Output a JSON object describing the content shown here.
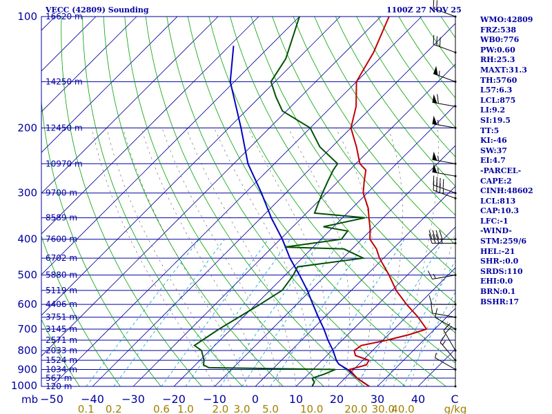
{
  "header": {
    "station_title": "VECC (42809) Sounding",
    "valid_time": "1100Z 27 NOV 25"
  },
  "indices": [
    "WMO:42809",
    "FRZ:538",
    "WB0:776",
    "PW:0.60",
    "RH:25.3",
    "MAXT:31.3",
    "TH:5760",
    "L57:6.3",
    "LCL:875",
    "LI:9.2",
    "SI:19.5",
    "TT:5",
    "KI:-46",
    "SW:37",
    "EI:4.7",
    "-PARCEL-",
    "CAPE:2",
    "CINH:48602",
    "LCL:813",
    "CAP:10.3",
    "LFC:-1",
    "-WIND-",
    "STM:259/6",
    "HEL:-21",
    "SHR-:0.0",
    "SRDS:110",
    "EHI:0.0",
    "BRN:0.1",
    "BSHR:17"
  ],
  "colors": {
    "frame": "#0000a0",
    "isobar": "#0000a0",
    "isotherm": "#0000a0",
    "dry_adiabat": "#00a000",
    "mixing_ratio": "#00a0d0",
    "moist_adiabat": "#606060",
    "temperature": "#c00000",
    "dewpoint": "#005000",
    "parcel": "#0000c0",
    "xaxis_text": "#0000a0",
    "mixing_text": "#a08000",
    "wind": "#000000"
  },
  "chart_data": {
    "type": "skew-t",
    "title": "VECC (42809) Sounding",
    "pressure_unit": "mb",
    "temperature_unit": "C",
    "mixing_ratio_unit": "g/kg",
    "pressure_ticks": [
      100,
      200,
      300,
      400,
      500,
      600,
      700,
      800,
      900,
      1000
    ],
    "temperature_ticks": [
      -50,
      -40,
      -30,
      -20,
      -10,
      0,
      10,
      20,
      30,
      40
    ],
    "temperature_tick_labels": [
      "−50",
      "−40",
      "−30",
      "−20",
      "−10",
      "0",
      "10",
      "20",
      "30",
      "40",
      "C"
    ],
    "mixing_ratio_labels": [
      "0.1",
      "0.2",
      "0.6",
      "1.0",
      "2.0",
      "3.0",
      "5.0",
      "10.0",
      "20.0",
      "30.0",
      "40.0",
      "g/kg"
    ],
    "mixing_ratio_values": [
      0.1,
      0.2,
      0.6,
      1.0,
      2.0,
      3.0,
      5.0,
      10.0,
      20.0,
      30.0,
      40.0
    ],
    "height_levels": [
      {
        "p": 100,
        "label": "16620 m"
      },
      {
        "p": 150,
        "label": "14250 m"
      },
      {
        "p": 200,
        "label": "12450 m"
      },
      {
        "p": 250,
        "label": "10970 m"
      },
      {
        "p": 300,
        "label": "9700 m"
      },
      {
        "p": 350,
        "label": "8589 m"
      },
      {
        "p": 400,
        "label": "7600 m"
      },
      {
        "p": 450,
        "label": "6702 m"
      },
      {
        "p": 500,
        "label": "5880 m"
      },
      {
        "p": 550,
        "label": "5119 m"
      },
      {
        "p": 600,
        "label": "4406 m"
      },
      {
        "p": 650,
        "label": "3751 m"
      },
      {
        "p": 700,
        "label": "3145 m"
      },
      {
        "p": 750,
        "label": "2571 m"
      },
      {
        "p": 800,
        "label": "2033 m"
      },
      {
        "p": 850,
        "label": "1524 m"
      },
      {
        "p": 900,
        "label": "1034 m"
      },
      {
        "p": 950,
        "label": "567 m"
      },
      {
        "p": 1000,
        "label": "120 m"
      }
    ],
    "temperature_profile": [
      [
        1000,
        28.0
      ],
      [
        975,
        25.5
      ],
      [
        950,
        23.0
      ],
      [
        925,
        21.0
      ],
      [
        900,
        19.0
      ],
      [
        875,
        22.0
      ],
      [
        850,
        21.5
      ],
      [
        825,
        17.0
      ],
      [
        800,
        15.5
      ],
      [
        775,
        16.0
      ],
      [
        750,
        21.0
      ],
      [
        725,
        25.0
      ],
      [
        700,
        28.0
      ],
      [
        650,
        23.0
      ],
      [
        600,
        17.0
      ],
      [
        550,
        11.0
      ],
      [
        500,
        5.5
      ],
      [
        450,
        -1.0
      ],
      [
        425,
        -4.0
      ],
      [
        400,
        -8.0
      ],
      [
        375,
        -10.5
      ],
      [
        350,
        -13.5
      ],
      [
        330,
        -16.0
      ],
      [
        300,
        -21.0
      ],
      [
        280,
        -23.5
      ],
      [
        260,
        -26.0
      ],
      [
        250,
        -29.0
      ],
      [
        225,
        -34.0
      ],
      [
        200,
        -40.0
      ],
      [
        175,
        -44.0
      ],
      [
        150,
        -50.0
      ],
      [
        125,
        -53.0
      ],
      [
        100,
        -58.0
      ]
    ],
    "dewpoint_profile": [
      [
        1000,
        14.0
      ],
      [
        975,
        13.5
      ],
      [
        950,
        12.0
      ],
      [
        925,
        14.0
      ],
      [
        900,
        15.5
      ],
      [
        890,
        -16.0
      ],
      [
        875,
        -18.0
      ],
      [
        850,
        -19.0
      ],
      [
        800,
        -22.0
      ],
      [
        775,
        -25.0
      ],
      [
        700,
        -23.0
      ],
      [
        600,
        -19.0
      ],
      [
        550,
        -17.0
      ],
      [
        500,
        -18.0
      ],
      [
        475,
        -19.0
      ],
      [
        450,
        -5.0
      ],
      [
        425,
        -12.0
      ],
      [
        420,
        -27.0
      ],
      [
        400,
        -15.0
      ],
      [
        380,
        -15.5
      ],
      [
        370,
        -22.5
      ],
      [
        350,
        -14.5
      ],
      [
        340,
        -28.0
      ],
      [
        320,
        -29.5
      ],
      [
        300,
        -31.0
      ],
      [
        280,
        -32.5
      ],
      [
        260,
        -34.0
      ],
      [
        250,
        -34.5
      ],
      [
        225,
        -43.0
      ],
      [
        200,
        -50.0
      ],
      [
        180,
        -61.0
      ],
      [
        165,
        -66.0
      ],
      [
        150,
        -71.0
      ],
      [
        130,
        -73.0
      ],
      [
        100,
        -80.0
      ]
    ],
    "parcel_profile": [
      [
        1000,
        28.0
      ],
      [
        950,
        23.0
      ],
      [
        900,
        18.5
      ],
      [
        870,
        15.0
      ],
      [
        850,
        13.5
      ],
      [
        800,
        10.3
      ],
      [
        750,
        6.5
      ],
      [
        700,
        2.8
      ],
      [
        650,
        -1.5
      ],
      [
        600,
        -6.0
      ],
      [
        550,
        -10.8
      ],
      [
        500,
        -16.5
      ],
      [
        450,
        -23.0
      ],
      [
        400,
        -29.5
      ],
      [
        350,
        -37.5
      ],
      [
        300,
        -46.0
      ],
      [
        250,
        -56.5
      ],
      [
        200,
        -67.0
      ],
      [
        150,
        -81.0
      ],
      [
        120,
        -89.0
      ]
    ],
    "wind_barbs": [
      {
        "p": 100,
        "dir": 290,
        "spd": 20
      },
      {
        "p": 125,
        "dir": 290,
        "spd": 30
      },
      {
        "p": 150,
        "dir": 290,
        "spd": 55
      },
      {
        "p": 175,
        "dir": 280,
        "spd": 60
      },
      {
        "p": 200,
        "dir": 280,
        "spd": 55
      },
      {
        "p": 250,
        "dir": 280,
        "spd": 55
      },
      {
        "p": 270,
        "dir": 280,
        "spd": 55
      },
      {
        "p": 300,
        "dir": 290,
        "spd": 40
      },
      {
        "p": 310,
        "dir": 290,
        "spd": 35
      },
      {
        "p": 400,
        "dir": 270,
        "spd": 40
      },
      {
        "p": 410,
        "dir": 270,
        "spd": 35
      },
      {
        "p": 500,
        "dir": 260,
        "spd": 15
      },
      {
        "p": 600,
        "dir": 270,
        "spd": 10
      },
      {
        "p": 650,
        "dir": 280,
        "spd": 10
      },
      {
        "p": 700,
        "dir": 300,
        "spd": 10
      },
      {
        "p": 800,
        "dir": 330,
        "spd": 20
      },
      {
        "p": 850,
        "dir": 320,
        "spd": 15
      },
      {
        "p": 900,
        "dir": 300,
        "spd": 5
      },
      {
        "p": 1000,
        "dir": 0,
        "spd": 0
      }
    ]
  }
}
